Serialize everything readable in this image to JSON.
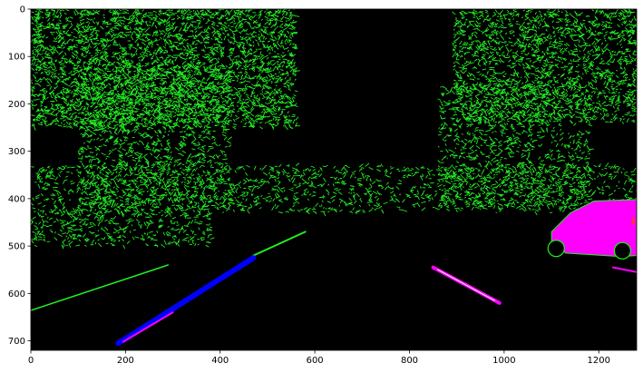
{
  "chart_data": {
    "type": "image",
    "title": "",
    "xlabel": "",
    "ylabel": "",
    "xlim": [
      0,
      1280
    ],
    "ylim": [
      720,
      0
    ],
    "x_ticks": [
      0,
      200,
      400,
      600,
      800,
      1000,
      1200
    ],
    "y_ticks": [
      0,
      100,
      200,
      300,
      400,
      500,
      600,
      700
    ],
    "grid": false,
    "background_color": "#000000",
    "channel_colors": {
      "edges": "#22ee22",
      "lane_left": "#0000ff",
      "lane_right": "#ff00ff"
    },
    "regions": {
      "vegetation_left": {
        "color": "#22ee22",
        "x": [
          0,
          560
        ],
        "y": [
          0,
          250
        ],
        "density": 0.55
      },
      "vegetation_right": {
        "color": "#22ee22",
        "x": [
          890,
          1280
        ],
        "y": [
          0,
          240
        ],
        "density": 0.45
      },
      "tree_trunk_left": {
        "color": "#22ee22",
        "x": [
          100,
          420
        ],
        "y": [
          120,
          420
        ],
        "density": 0.35
      },
      "tree_trunk_right": {
        "color": "#22ee22",
        "x": [
          860,
          1180
        ],
        "y": [
          160,
          420
        ],
        "density": 0.3
      },
      "horizon_band": {
        "color": "#22ee22",
        "x": [
          0,
          1280
        ],
        "y": [
          330,
          430
        ],
        "density": 0.25
      },
      "road_side_left": {
        "color": "#22ee22",
        "x": [
          0,
          380
        ],
        "y": [
          420,
          500
        ],
        "density": 0.3
      }
    },
    "segments": [
      {
        "color": "#22ee22",
        "points": [
          [
            0,
            636
          ],
          [
            290,
            540
          ]
        ],
        "width": 1.5
      },
      {
        "color": "#22ee22",
        "points": [
          [
            470,
            520
          ],
          [
            580,
            470
          ]
        ],
        "width": 2
      },
      {
        "color": "#0000ff",
        "points": [
          [
            185,
            705
          ],
          [
            470,
            525
          ]
        ],
        "width": 6
      },
      {
        "color": "#ff00ff",
        "points": [
          [
            195,
            702
          ],
          [
            300,
            640
          ]
        ],
        "width": 2
      },
      {
        "color": "#ff00ff",
        "points": [
          [
            850,
            545
          ],
          [
            990,
            620
          ]
        ],
        "width": 4
      },
      {
        "color": "#ffffff",
        "points": [
          [
            860,
            550
          ],
          [
            980,
            615
          ]
        ],
        "width": 1
      },
      {
        "color": "#ff00ff",
        "points": [
          [
            1230,
            545
          ],
          [
            1280,
            555
          ]
        ],
        "width": 2
      }
    ],
    "car": {
      "outline_color": "#22ee22",
      "fill_color": "#ff00ff",
      "accent_color": "#ff3333",
      "body": [
        [
          1100,
          470
        ],
        [
          1140,
          430
        ],
        [
          1190,
          405
        ],
        [
          1280,
          402
        ],
        [
          1280,
          520
        ],
        [
          1245,
          522
        ],
        [
          1130,
          515
        ],
        [
          1100,
          490
        ]
      ]
    }
  }
}
